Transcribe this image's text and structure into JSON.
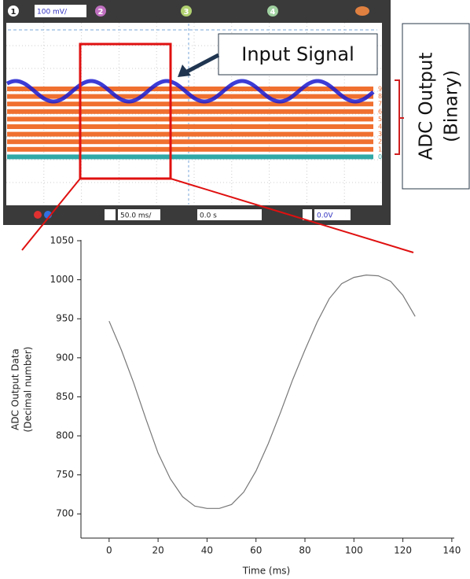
{
  "scope": {
    "channels": [
      "1",
      "2",
      "3",
      "4"
    ],
    "volts_per_div": "100 mV/",
    "time_per_div": "50.0 ms/",
    "time_offset": "0.0 s",
    "trigger_level": "0.0V",
    "digital_channels": [
      "9",
      "8",
      "7",
      "6",
      "5",
      "4",
      "3",
      "2",
      "1",
      "0"
    ],
    "annotation": "Input Signal",
    "adc_label": [
      "ADC Output",
      "(Binary)"
    ]
  },
  "chart_data": {
    "type": "line",
    "x_label": "Time (ms)",
    "y_label": [
      "ADC Output Data",
      "(Decimal number)"
    ],
    "x": [
      0,
      5,
      10,
      15,
      20,
      25,
      30,
      35,
      40,
      45,
      50,
      55,
      60,
      65,
      70,
      75,
      80,
      85,
      90,
      95,
      100,
      105,
      110,
      115,
      120,
      125
    ],
    "series": [
      {
        "color": "#777777",
        "values": [
          947,
          910,
          868,
          822,
          778,
          745,
          722,
          710,
          707,
          707,
          712,
          728,
          755,
          790,
          830,
          872,
          910,
          946,
          976,
          995,
          1003,
          1006,
          1005,
          998,
          980,
          953
        ]
      }
    ],
    "xlim": [
      -11.5,
      141
    ],
    "ylim": [
      669,
      1051
    ],
    "xticks": [
      0,
      20,
      40,
      60,
      80,
      100,
      120,
      140
    ],
    "yticks": [
      700,
      750,
      800,
      850,
      900,
      950,
      1000,
      1050
    ]
  }
}
